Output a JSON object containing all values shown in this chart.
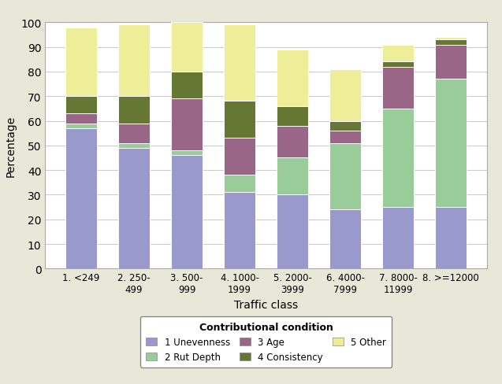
{
  "categories": [
    "1. <249",
    "2. 250-\n499",
    "3. 500-\n999",
    "4. 1000-\n1999",
    "5. 2000-\n3999",
    "6. 4000-\n7999",
    "7. 8000-\n11999",
    "8. >=12000"
  ],
  "series_order": [
    "1 Unevenness",
    "2 Rut Depth",
    "3 Age",
    "4 Consistency",
    "5 Other"
  ],
  "series": {
    "1 Unevenness": [
      57,
      49,
      46,
      31,
      30,
      24,
      25,
      25
    ],
    "2 Rut Depth": [
      2,
      2,
      2,
      7,
      15,
      27,
      40,
      52
    ],
    "3 Age": [
      4,
      8,
      21,
      15,
      13,
      5,
      17,
      14
    ],
    "4 Consistency": [
      7,
      11,
      11,
      15,
      8,
      4,
      2,
      2
    ],
    "5 Other": [
      28,
      29,
      20,
      31,
      23,
      21,
      7,
      1
    ]
  },
  "colors": {
    "1 Unevenness": "#9999cc",
    "2 Rut Depth": "#99cc99",
    "3 Age": "#996688",
    "4 Consistency": "#667733",
    "5 Other": "#eeee99"
  },
  "ylabel": "Percentage",
  "xlabel": "Traffic class",
  "legend_title": "Contributional condition",
  "ylim": [
    0,
    100
  ],
  "yticks": [
    0,
    10,
    20,
    30,
    40,
    50,
    60,
    70,
    80,
    90,
    100
  ],
  "background_color": "#e8e8d8",
  "plot_background": "#ffffff",
  "grid_color": "#cccccc",
  "bar_width": 0.6,
  "figsize": [
    6.37,
    4.89
  ],
  "dpi": 100
}
